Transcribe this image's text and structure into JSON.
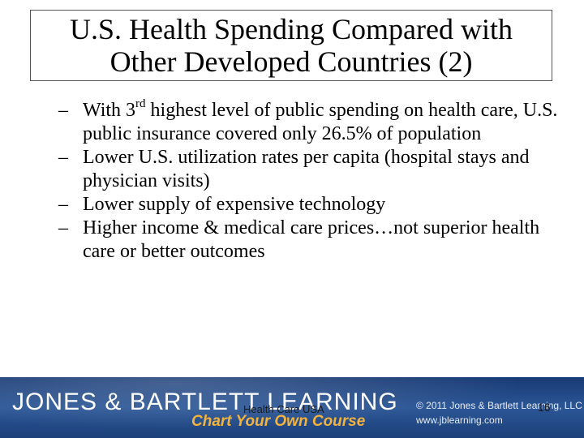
{
  "slide": {
    "title_line1": "U.S. Health Spending Compared with",
    "title_line2": "Other Developed Countries (2)",
    "bullet_marker": "–",
    "bullets": [
      {
        "prefix": "With 3",
        "superscript": "rd",
        "suffix": " highest level of public spending on health care, U.S. public insurance covered only 26.5% of population"
      },
      {
        "text": "Lower U.S. utilization rates per capita (hospital stays and physician visits)"
      },
      {
        "text": "Lower supply of expensive technology"
      },
      {
        "text": "Higher income & medical care prices…not superior health care or better outcomes"
      }
    ]
  },
  "footer": {
    "brand": "JONES & BARTLETT LEARNING",
    "tagline": "Chart Your Own Course",
    "copyright": "© 2011 Jones & Bartlett Learning, LLC",
    "url": "www.jblearning.com",
    "center_text": "Health Care USA",
    "slide_number": "16"
  }
}
